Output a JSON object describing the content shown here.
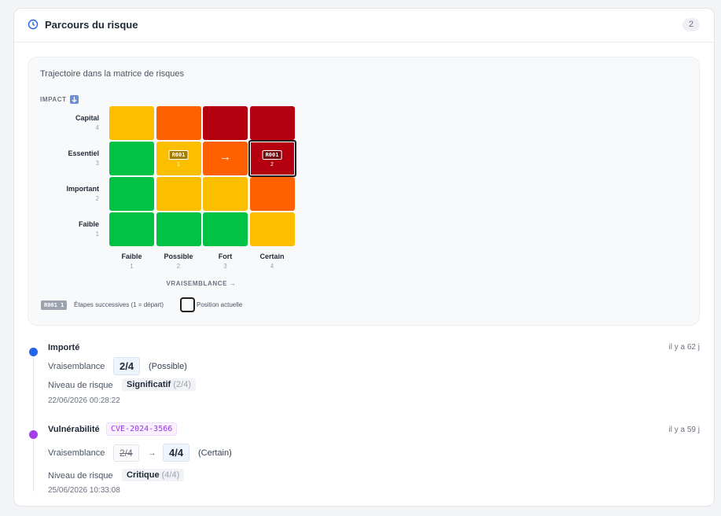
{
  "header": {
    "title": "Parcours du risque",
    "count": 2
  },
  "matrix": {
    "title": "Trajectoire dans la matrice de risques",
    "impact_label": "IMPACT",
    "rows": [
      {
        "label": "Capital",
        "num": 4
      },
      {
        "label": "Essentiel",
        "num": 3
      },
      {
        "label": "Important",
        "num": 2
      },
      {
        "label": "Faible",
        "num": 1
      }
    ],
    "cols": [
      {
        "label": "Faible",
        "num": 1
      },
      {
        "label": "Possible",
        "num": 2
      },
      {
        "label": "Fort",
        "num": 3
      },
      {
        "label": "Certain",
        "num": 4
      }
    ],
    "x_label": "VRAISEMBLANCE →",
    "cells": [
      [
        {
          "color": "#fcbf00"
        },
        {
          "color": "#ff6000"
        },
        {
          "color": "#b5000f"
        },
        {
          "color": "#b5000f"
        }
      ],
      [
        {
          "color": "#00c244"
        },
        {
          "color": "#fcbf00",
          "code": "R001",
          "step": 1
        },
        {
          "color": "#ff6000",
          "arrow": "→"
        },
        {
          "color": "#b5000f",
          "code": "R001",
          "step": 2,
          "current": true
        }
      ],
      [
        {
          "color": "#00c244"
        },
        {
          "color": "#fcbf00"
        },
        {
          "color": "#fcbf00"
        },
        {
          "color": "#ff6000"
        }
      ],
      [
        {
          "color": "#00c244"
        },
        {
          "color": "#00c244"
        },
        {
          "color": "#00c244"
        },
        {
          "color": "#fcbf00"
        }
      ]
    ],
    "legend": {
      "chip_code": "R001",
      "chip_step": 1,
      "steps_text": "Étapes successives (1 = départ)",
      "current_text": "Position actuelle"
    }
  },
  "events": [
    {
      "color": "#2563eb",
      "title": "Importé",
      "ago": "il y a 62 j",
      "likelihood_label": "Vraisemblance",
      "likelihood": "2/4",
      "likelihood_text": "(Possible)",
      "risk_label": "Niveau de risque",
      "risk": "Significatif",
      "risk_score": "(2/4)",
      "date": "22/06/2026 00:28:22"
    },
    {
      "color": "#a33ee8",
      "title": "Vulnérabilité",
      "tag": "CVE-2024-3566",
      "ago": "il y a 59 j",
      "likelihood_label": "Vraisemblance",
      "likelihood_old": "2/4",
      "arrow": "→",
      "likelihood": "4/4",
      "likelihood_text": "(Certain)",
      "risk_label": "Niveau de risque",
      "risk": "Critique",
      "risk_score": "(4/4)",
      "date": "25/06/2026 10:33:08"
    }
  ]
}
